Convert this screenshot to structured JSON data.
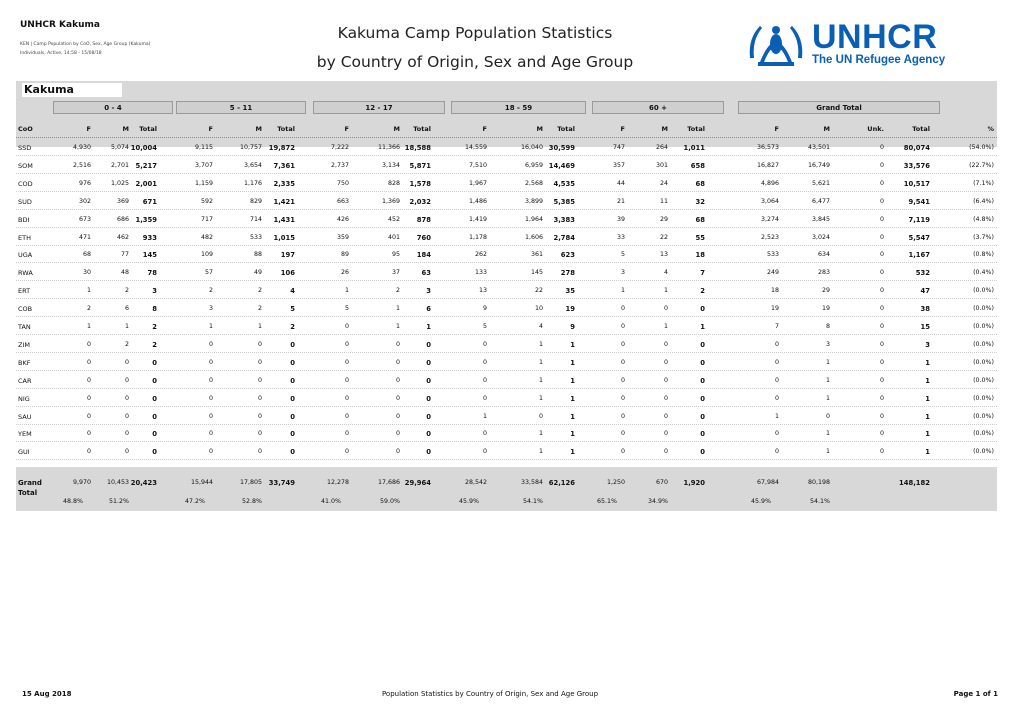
{
  "header": {
    "org": "UNHCR Kakuma",
    "line1": "KEN | Camp Population by CoO, Sex, Age Group (Kakuma)",
    "line2": "Individuals, Active, 14:58 - 15/08/18",
    "title1": "Kakuma Camp Population Statistics",
    "title2": "by Country of Origin, Sex and Age Group",
    "logo_text": "UNHCR",
    "logo_tag": "The UN Refugee Agency",
    "brand_color": "#0a5fb4"
  },
  "table": {
    "camp": "Kakuma",
    "groups": [
      "0 - 4",
      "5 - 11",
      "12 - 17",
      "18 - 59",
      "60 +",
      "Grand Total"
    ],
    "coo_label": "CoO",
    "sub_f": "F",
    "sub_m": "M",
    "sub_total": "Total",
    "sub_unk": "Unk.",
    "sub_pct": "%",
    "rows": [
      {
        "coo": "SSD",
        "v": [
          "4,930",
          "5,074",
          "10,004",
          "9,115",
          "10,757",
          "19,872",
          "7,222",
          "11,366",
          "18,588",
          "14,559",
          "16,040",
          "30,599",
          "747",
          "264",
          "1,011",
          "36,573",
          "43,501",
          "0",
          "80,074",
          "(54.0%)"
        ]
      },
      {
        "coo": "SOM",
        "v": [
          "2,516",
          "2,701",
          "5,217",
          "3,707",
          "3,654",
          "7,361",
          "2,737",
          "3,134",
          "5,871",
          "7,510",
          "6,959",
          "14,469",
          "357",
          "301",
          "658",
          "16,827",
          "16,749",
          "0",
          "33,576",
          "(22.7%)"
        ]
      },
      {
        "coo": "COD",
        "v": [
          "976",
          "1,025",
          "2,001",
          "1,159",
          "1,176",
          "2,335",
          "750",
          "828",
          "1,578",
          "1,967",
          "2,568",
          "4,535",
          "44",
          "24",
          "68",
          "4,896",
          "5,621",
          "0",
          "10,517",
          "(7.1%)"
        ]
      },
      {
        "coo": "SUD",
        "v": [
          "302",
          "369",
          "671",
          "592",
          "829",
          "1,421",
          "663",
          "1,369",
          "2,032",
          "1,486",
          "3,899",
          "5,385",
          "21",
          "11",
          "32",
          "3,064",
          "6,477",
          "0",
          "9,541",
          "(6.4%)"
        ]
      },
      {
        "coo": "BDI",
        "v": [
          "673",
          "686",
          "1,359",
          "717",
          "714",
          "1,431",
          "426",
          "452",
          "878",
          "1,419",
          "1,964",
          "3,383",
          "39",
          "29",
          "68",
          "3,274",
          "3,845",
          "0",
          "7,119",
          "(4.8%)"
        ]
      },
      {
        "coo": "ETH",
        "v": [
          "471",
          "462",
          "933",
          "482",
          "533",
          "1,015",
          "359",
          "401",
          "760",
          "1,178",
          "1,606",
          "2,784",
          "33",
          "22",
          "55",
          "2,523",
          "3,024",
          "0",
          "5,547",
          "(3.7%)"
        ]
      },
      {
        "coo": "UGA",
        "v": [
          "68",
          "77",
          "145",
          "109",
          "88",
          "197",
          "89",
          "95",
          "184",
          "262",
          "361",
          "623",
          "5",
          "13",
          "18",
          "533",
          "634",
          "0",
          "1,167",
          "(0.8%)"
        ]
      },
      {
        "coo": "RWA",
        "v": [
          "30",
          "48",
          "78",
          "57",
          "49",
          "106",
          "26",
          "37",
          "63",
          "133",
          "145",
          "278",
          "3",
          "4",
          "7",
          "249",
          "283",
          "0",
          "532",
          "(0.4%)"
        ]
      },
      {
        "coo": "ERT",
        "v": [
          "1",
          "2",
          "3",
          "2",
          "2",
          "4",
          "1",
          "2",
          "3",
          "13",
          "22",
          "35",
          "1",
          "1",
          "2",
          "18",
          "29",
          "0",
          "47",
          "(0.0%)"
        ]
      },
      {
        "coo": "COB",
        "v": [
          "2",
          "6",
          "8",
          "3",
          "2",
          "5",
          "5",
          "1",
          "6",
          "9",
          "10",
          "19",
          "0",
          "0",
          "0",
          "19",
          "19",
          "0",
          "38",
          "(0.0%)"
        ]
      },
      {
        "coo": "TAN",
        "v": [
          "1",
          "1",
          "2",
          "1",
          "1",
          "2",
          "0",
          "1",
          "1",
          "5",
          "4",
          "9",
          "0",
          "1",
          "1",
          "7",
          "8",
          "0",
          "15",
          "(0.0%)"
        ]
      },
      {
        "coo": "ZIM",
        "v": [
          "0",
          "2",
          "2",
          "0",
          "0",
          "0",
          "0",
          "0",
          "0",
          "0",
          "1",
          "1",
          "0",
          "0",
          "0",
          "0",
          "3",
          "0",
          "3",
          "(0.0%)"
        ]
      },
      {
        "coo": "BKF",
        "v": [
          "0",
          "0",
          "0",
          "0",
          "0",
          "0",
          "0",
          "0",
          "0",
          "0",
          "1",
          "1",
          "0",
          "0",
          "0",
          "0",
          "1",
          "0",
          "1",
          "(0.0%)"
        ]
      },
      {
        "coo": "CAR",
        "v": [
          "0",
          "0",
          "0",
          "0",
          "0",
          "0",
          "0",
          "0",
          "0",
          "0",
          "1",
          "1",
          "0",
          "0",
          "0",
          "0",
          "1",
          "0",
          "1",
          "(0.0%)"
        ]
      },
      {
        "coo": "NIG",
        "v": [
          "0",
          "0",
          "0",
          "0",
          "0",
          "0",
          "0",
          "0",
          "0",
          "0",
          "1",
          "1",
          "0",
          "0",
          "0",
          "0",
          "1",
          "0",
          "1",
          "(0.0%)"
        ]
      },
      {
        "coo": "SAU",
        "v": [
          "0",
          "0",
          "0",
          "0",
          "0",
          "0",
          "0",
          "0",
          "0",
          "1",
          "0",
          "1",
          "0",
          "0",
          "0",
          "1",
          "0",
          "0",
          "1",
          "(0.0%)"
        ]
      },
      {
        "coo": "YEM",
        "v": [
          "0",
          "0",
          "0",
          "0",
          "0",
          "0",
          "0",
          "0",
          "0",
          "0",
          "1",
          "1",
          "0",
          "0",
          "0",
          "0",
          "1",
          "0",
          "1",
          "(0.0%)"
        ]
      },
      {
        "coo": "GUI",
        "v": [
          "0",
          "0",
          "0",
          "0",
          "0",
          "0",
          "0",
          "0",
          "0",
          "0",
          "1",
          "1",
          "0",
          "0",
          "0",
          "0",
          "1",
          "0",
          "1",
          "(0.0%)"
        ]
      }
    ],
    "grand_label_1": "Grand",
    "grand_label_2": "Total",
    "grand": [
      "9,970",
      "10,453",
      "20,423",
      "15,944",
      "17,805",
      "33,749",
      "12,278",
      "17,686",
      "29,964",
      "28,542",
      "33,584",
      "62,126",
      "1,250",
      "670",
      "1,920",
      "67,984",
      "80,198",
      "",
      "148,182",
      ""
    ],
    "grand_pct": [
      "48.8%",
      "51.2%",
      "",
      "47.2%",
      "52.8%",
      "",
      "41.0%",
      "59.0%",
      "",
      "45.9%",
      "54.1%",
      "",
      "65.1%",
      "34.9%",
      "",
      "45.9%",
      "54.1%",
      "",
      "",
      ""
    ]
  },
  "footer": {
    "date": "15 Aug 2018",
    "center": "Population Statistics by Country of Origin, Sex and Age Group",
    "page": "Page 1 of 1"
  }
}
